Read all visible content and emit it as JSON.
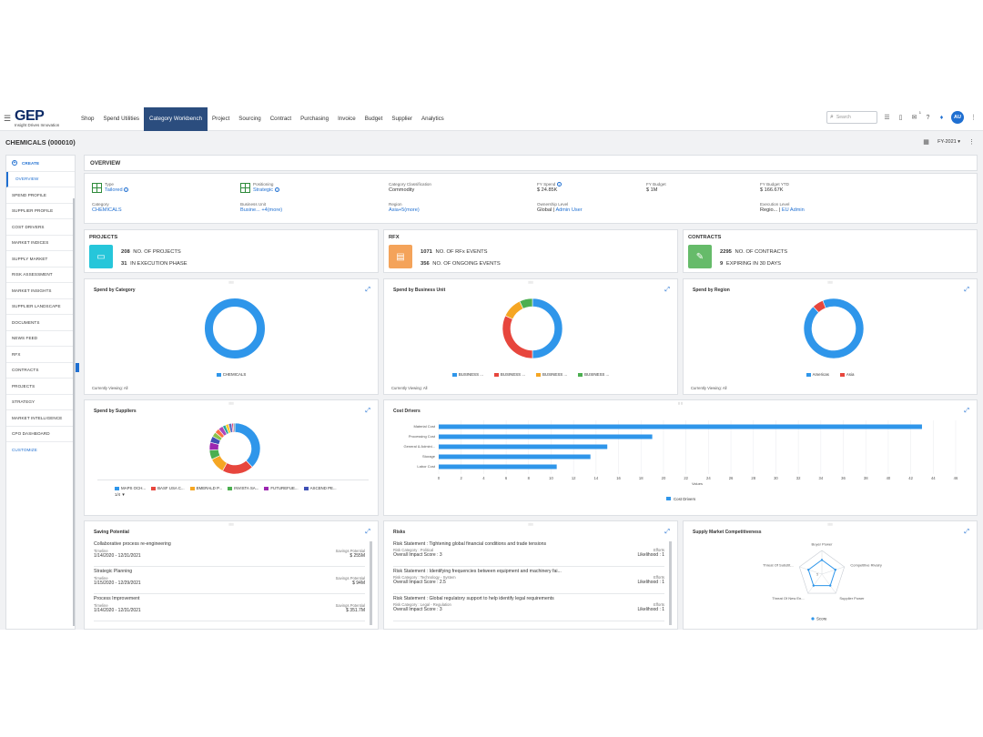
{
  "app": {
    "logo_brand_pre": "",
    "logo_brand_g": "GEP",
    "logo_tagline": "Insight Drives Innovation"
  },
  "nav": {
    "items": [
      "Shop",
      "Spend Utilities",
      "Category Workbench",
      "Project",
      "Sourcing",
      "Contract",
      "Purchasing",
      "Invoice",
      "Budget",
      "Supplier",
      "Analytics"
    ],
    "active": "Category Workbench",
    "search_placeholder": "Search",
    "badge": "1",
    "avatar": "AU"
  },
  "header": {
    "title": "CHEMICALS (000010)",
    "fy": "FY-2021"
  },
  "sidebar": {
    "create": "CREATE",
    "items": [
      "OVERVIEW",
      "SPEND PROFILE",
      "SUPPLIER PROFILE",
      "COST DRIVERS",
      "MARKET INDICES",
      "SUPPLY MARKET",
      "RISK ASSESSMENT",
      "MARKET INSIGHTS",
      "SUPPLIER LANDSCAPE",
      "DOCUMENTS",
      "NEWS FEED",
      "RFX",
      "CONTRACTS",
      "PROJECTS",
      "STRATEGY",
      "MARKET INTELLIGENCE",
      "CPO DASHBOARD"
    ],
    "customize": "CUSTOMIZE"
  },
  "overview": {
    "title": "OVERVIEW",
    "type_label": "Type",
    "type_value": "Tailored",
    "positioning_label": "Positioning",
    "positioning_value": "Strategic",
    "classification_label": "Category Classification",
    "classification_value": "Commodity",
    "fy_spend_label": "FY Spend",
    "fy_spend_value": "$ 24.85K",
    "fy_budget_label": "FY Budget",
    "fy_budget_value": "$ 1M",
    "fy_budget_ytd_label": "FY Budget YTD",
    "fy_budget_ytd_value": "$ 166.67K",
    "category_label": "Category",
    "category_value": "CHEMICALS",
    "bu_label": "Business Unit",
    "bu_value": "Busine... +4(more)",
    "region_label": "Region",
    "region_value": "Asia+5(more)",
    "ownership_label": "Ownership Level",
    "ownership_value_a": "Global",
    "ownership_value_b": "Admin User",
    "execution_label": "Execution Level",
    "execution_value_a": "Regio...",
    "execution_value_b": "EU Admin"
  },
  "kpis": {
    "projects": {
      "title": "PROJECTS",
      "n1": "208",
      "t1": "NO. OF PROJECTS",
      "n2": "31",
      "t2": "IN EXECUTION PHASE"
    },
    "rfx": {
      "title": "RFX",
      "n1": "1071",
      "t1": "NO. OF RFx EVENTS",
      "n2": "356",
      "t2": "NO. OF ONGOING EVENTS"
    },
    "contracts": {
      "title": "CONTRACTS",
      "n1": "2295",
      "t1": "NO. OF CONTRACTS",
      "n2": "9",
      "t2": "EXPIRING IN 30 DAYS"
    }
  },
  "colors": {
    "blue": "#2f96ea",
    "red": "#e7463d",
    "orange": "#f5a623",
    "green": "#4caf50",
    "purple": "#9c27b0",
    "indigo": "#3f51b5",
    "teal": "#26c6da",
    "kpi_projects": "#26c6da",
    "kpi_rfx": "#f4a35a",
    "kpi_contracts": "#66bb6a"
  },
  "spend_by_category": {
    "title": "Spend by Category",
    "viewing": "Currently Viewing: All",
    "legend": [
      "CHEMICALS"
    ]
  },
  "spend_by_bu": {
    "title": "Spend by Business Unit",
    "viewing": "Currently Viewing: All",
    "legend": [
      "BUSINESS ...",
      "BUSINESS ...",
      "BUSINESS ...",
      "BUSINESS ..."
    ]
  },
  "spend_by_region": {
    "title": "Spend by Region",
    "viewing": "Currently Viewing: All",
    "legend": [
      "Americas",
      "Asia"
    ]
  },
  "spend_by_suppliers": {
    "title": "Spend by Suppliers",
    "legend": [
      "MAPS OCH...",
      "BASF USA C...",
      "EMERALD P...",
      "INVISTA SA...",
      "FUTUREFUE...",
      "ASCEND PE..."
    ],
    "pager": "1/4 ▼"
  },
  "chart_data": [
    {
      "type": "pie",
      "title": "Spend by Category",
      "categories": [
        "CHEMICALS"
      ],
      "values": [
        100
      ]
    },
    {
      "type": "pie",
      "title": "Spend by Business Unit",
      "categories": [
        "BUSINESS ...",
        "BUSINESS ...",
        "BUSINESS ...",
        "BUSINESS ..."
      ],
      "values": [
        50,
        32,
        11,
        7
      ]
    },
    {
      "type": "pie",
      "title": "Spend by Region",
      "categories": [
        "Americas",
        "Asia"
      ],
      "values": [
        94,
        6
      ]
    },
    {
      "type": "pie",
      "title": "Spend by Suppliers",
      "values": [
        38,
        20,
        10,
        6,
        5,
        4,
        3,
        3,
        3,
        2,
        2,
        2,
        1,
        1
      ]
    },
    {
      "type": "bar",
      "title": "Cost Drivers",
      "orientation": "horizontal",
      "categories": [
        "Material Cost",
        "Processing Cost",
        "General & Admini...",
        "Storage",
        "Labor Cost"
      ],
      "series": [
        {
          "name": "Cost Drivers",
          "values": [
            43,
            19,
            15,
            13.5,
            10.5
          ]
        }
      ],
      "xlabel": "Values",
      "xlim": [
        0,
        46
      ],
      "ticks": [
        0,
        2,
        4,
        6,
        8,
        10,
        12,
        14,
        16,
        18,
        20,
        22,
        24,
        26,
        28,
        30,
        32,
        34,
        36,
        38,
        40,
        42,
        44,
        46
      ]
    },
    {
      "type": "radar",
      "title": "Supply Market Competitiveness",
      "categories": [
        "Buyer Power",
        "Competitive Rivalry",
        "Supplier Power",
        "Threat Of New En...",
        "Threat Of Substit..."
      ],
      "series": [
        {
          "name": "Score",
          "values": [
            3,
            3,
            3,
            3,
            3
          ]
        }
      ],
      "scale_label": "5"
    }
  ],
  "cost_drivers": {
    "title": "Cost Drivers",
    "xlabel": "Values",
    "legend": "Cost Drivers"
  },
  "saving_potential": {
    "title": "Saving Potential",
    "rows": [
      {
        "name": "Collaborative process re-engineering",
        "timeline_label": "Timeline",
        "timeline": "1/14/2020 - 12/31/2021",
        "sp_label": "Savings Potential",
        "sp": "$ 255M"
      },
      {
        "name": "Strategic Planning",
        "timeline_label": "Timeline",
        "timeline": "1/15/2020 - 12/29/2021",
        "sp_label": "Savings Potential",
        "sp": "$ 94M"
      },
      {
        "name": "Process Improvement",
        "timeline_label": "Timeline",
        "timeline": "1/14/2020 - 12/31/2021",
        "sp_label": "Savings Potential",
        "sp": "$ 351.7M"
      }
    ]
  },
  "risks": {
    "title": "Risks",
    "rows": [
      {
        "stmt": "Risk Statement : Tightening global financial conditions and trade tensions",
        "cat": "Risk Category : Political",
        "score": "Overall Impact Score : 3",
        "effort_label": "Efforts",
        "likelihood": "Likelihood : 1"
      },
      {
        "stmt": "Risk Statement : Identifying frequencies between equipment and machinery fai...",
        "cat": "Risk Category : Technology - System",
        "score": "Overall Impact Score : 2.5",
        "effort_label": "Efforts",
        "likelihood": "Likelihood : 1"
      },
      {
        "stmt": "Risk Statement : Global regulatory support to help identify legal requirements",
        "cat": "Risk Category : Legal - Regulation",
        "score": "Overall Impact Score : 3",
        "effort_label": "Efforts",
        "likelihood": "Likelihood : 1"
      }
    ]
  },
  "smc": {
    "title": "Supply Market Competitiveness",
    "legend": "Score",
    "scale": "5"
  }
}
